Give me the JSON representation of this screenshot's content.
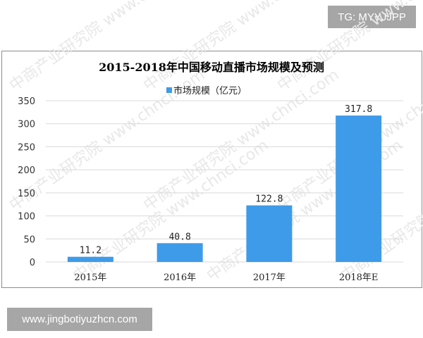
{
  "badges": {
    "top_right": "TG: MYYJJPP",
    "bottom_left": "www.jingbotiyuzhcn.com"
  },
  "watermark": "中商产业研究院 www.chnci.com",
  "colors": {
    "bar": "#3e9be9",
    "grid": "#d9d9d9"
  },
  "chart_data": {
    "type": "bar",
    "title": "2015-2018年中国移动直播市场规模及预测",
    "legend": "市场规模（亿元）",
    "legend_position": "top",
    "categories": [
      "2015年",
      "2016年",
      "2017年",
      "2018年E"
    ],
    "series": [
      {
        "name": "市场规模（亿元）",
        "values": [
          11.2,
          40.8,
          122.8,
          317.8
        ]
      }
    ],
    "data_labels": [
      "11.2",
      "40.8",
      "122.8",
      "317.8"
    ],
    "yticks": [
      0,
      50,
      100,
      150,
      200,
      250,
      300,
      350
    ],
    "ylim": [
      0,
      350
    ],
    "grid": true
  }
}
